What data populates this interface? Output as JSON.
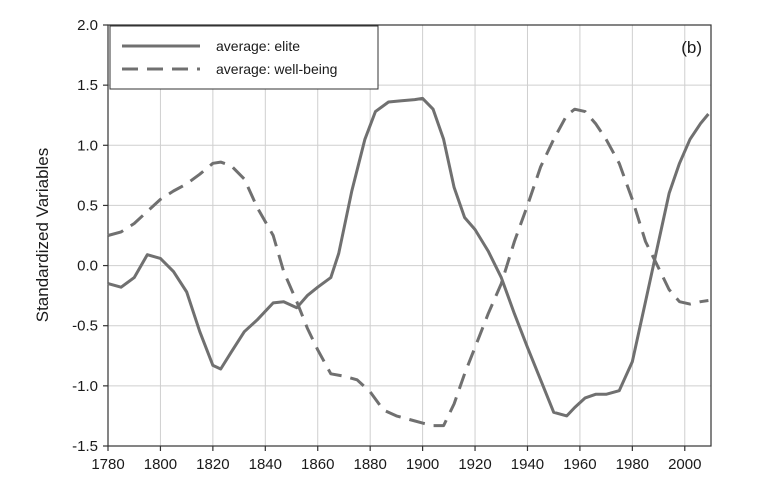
{
  "chart_data": {
    "type": "line",
    "panel_label": "(b)",
    "xlabel": "",
    "ylabel": "Standardized Variables",
    "xlim": [
      1780,
      2010
    ],
    "ylim": [
      -1.5,
      2.0
    ],
    "x_ticks": [
      "1780",
      "1800",
      "1820",
      "1840",
      "1860",
      "1880",
      "1900",
      "1920",
      "1940",
      "1960",
      "1980",
      "2000"
    ],
    "y_ticks": [
      "2.0",
      "1.5",
      "1.0",
      "0.5",
      "0.0",
      "-0.5",
      "-1.0",
      "-1.5"
    ],
    "grid": true,
    "legend_position": "top-left",
    "colors": {
      "line": "#707070",
      "grid": "#cfcfcf",
      "frame": "#333333"
    },
    "series": [
      {
        "name": "average: elite",
        "style": "solid",
        "x": [
          1780,
          1785,
          1790,
          1795,
          1800,
          1805,
          1810,
          1815,
          1820,
          1823,
          1827,
          1832,
          1837,
          1843,
          1847,
          1852,
          1856,
          1860,
          1865,
          1868,
          1873,
          1878,
          1882,
          1887,
          1892,
          1897,
          1900,
          1904,
          1908,
          1912,
          1916,
          1920,
          1925,
          1930,
          1935,
          1940,
          1945,
          1950,
          1955,
          1958,
          1962,
          1966,
          1970,
          1975,
          1980,
          1985,
          1990,
          1994,
          1998,
          2002,
          2006,
          2009
        ],
        "values": [
          -0.15,
          -0.18,
          -0.1,
          0.09,
          0.06,
          -0.05,
          -0.22,
          -0.55,
          -0.83,
          -0.86,
          -0.72,
          -0.55,
          -0.45,
          -0.31,
          -0.3,
          -0.35,
          -0.25,
          -0.18,
          -0.1,
          0.1,
          0.62,
          1.05,
          1.28,
          1.36,
          1.37,
          1.38,
          1.39,
          1.3,
          1.05,
          0.65,
          0.4,
          0.3,
          0.12,
          -0.1,
          -0.4,
          -0.68,
          -0.95,
          -1.22,
          -1.25,
          -1.18,
          -1.1,
          -1.07,
          -1.07,
          -1.04,
          -0.8,
          -0.3,
          0.2,
          0.6,
          0.85,
          1.05,
          1.18,
          1.26
        ]
      },
      {
        "name": "average: well-being",
        "style": "dashed",
        "x": [
          1780,
          1785,
          1790,
          1795,
          1800,
          1805,
          1810,
          1815,
          1820,
          1823,
          1827,
          1832,
          1837,
          1843,
          1847,
          1852,
          1856,
          1860,
          1865,
          1870,
          1875,
          1880,
          1885,
          1890,
          1895,
          1900,
          1904,
          1908,
          1912,
          1916,
          1920,
          1925,
          1930,
          1935,
          1940,
          1945,
          1950,
          1955,
          1958,
          1962,
          1966,
          1970,
          1975,
          1980,
          1985,
          1990,
          1994,
          1998,
          2002,
          2006,
          2009
        ],
        "values": [
          0.25,
          0.28,
          0.35,
          0.45,
          0.55,
          0.62,
          0.68,
          0.76,
          0.85,
          0.86,
          0.83,
          0.72,
          0.48,
          0.25,
          -0.05,
          -0.3,
          -0.52,
          -0.7,
          -0.9,
          -0.92,
          -0.95,
          -1.05,
          -1.2,
          -1.25,
          -1.28,
          -1.31,
          -1.33,
          -1.33,
          -1.15,
          -0.9,
          -0.68,
          -0.4,
          -0.15,
          0.2,
          0.5,
          0.82,
          1.05,
          1.25,
          1.3,
          1.28,
          1.18,
          1.05,
          0.85,
          0.55,
          0.2,
          -0.02,
          -0.2,
          -0.3,
          -0.32,
          -0.3,
          -0.29
        ]
      }
    ]
  }
}
